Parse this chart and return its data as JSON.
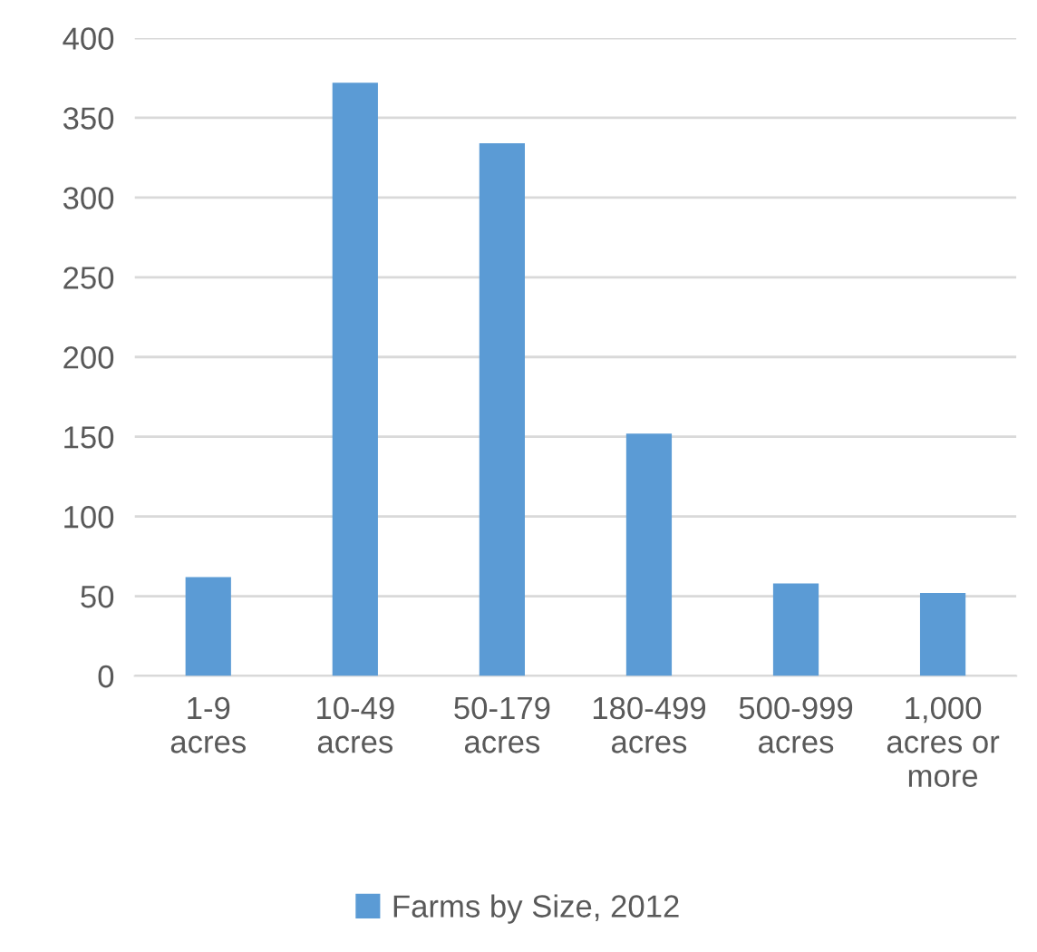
{
  "chart_data": {
    "type": "bar",
    "categories": [
      "1-9\nacres",
      "10-49\nacres",
      "50-179\nacres",
      "180-499\nacres",
      "500-999\nacres",
      "1,000\nacres or\nmore"
    ],
    "series": [
      {
        "name": "Farms by Size, 2012",
        "color": "#5b9bd5",
        "values": [
          62,
          372,
          334,
          152,
          58,
          52
        ]
      }
    ],
    "ylim": [
      0,
      400
    ],
    "yticks": [
      0,
      50,
      100,
      150,
      200,
      250,
      300,
      350,
      400
    ],
    "grid": "y",
    "legend": "bottom"
  }
}
